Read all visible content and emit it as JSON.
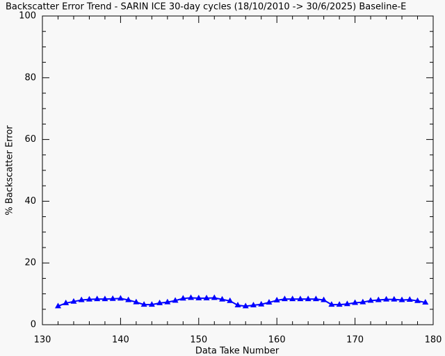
{
  "chart_data": {
    "type": "line",
    "title": "Backscatter Error Trend - SARIN ICE 30-day cycles (18/10/2010 -> 30/6/2025) Baseline-E",
    "x_label": "Data Take Number",
    "y_label": "% Backscatter Error",
    "x": [
      132,
      133,
      134,
      135,
      136,
      137,
      138,
      139,
      140,
      141,
      142,
      143,
      144,
      145,
      146,
      147,
      148,
      149,
      150,
      151,
      152,
      153,
      154,
      155,
      156,
      157,
      158,
      159,
      160,
      161,
      162,
      163,
      164,
      165,
      166,
      167,
      168,
      169,
      170,
      171,
      172,
      173,
      174,
      175,
      176,
      177,
      178,
      179
    ],
    "series": [
      {
        "name": "% Backscatter Error",
        "color": "#0000ff",
        "values": [
          6.0,
          7.0,
          7.5,
          8.0,
          8.2,
          8.3,
          8.3,
          8.4,
          8.5,
          8.0,
          7.3,
          6.5,
          6.5,
          7.0,
          7.3,
          7.8,
          8.5,
          8.7,
          8.6,
          8.6,
          8.7,
          8.2,
          7.7,
          6.3,
          6.0,
          6.3,
          6.6,
          7.2,
          7.9,
          8.3,
          8.3,
          8.3,
          8.3,
          8.3,
          8.0,
          6.5,
          6.5,
          6.7,
          7.1,
          7.3,
          7.8,
          8.0,
          8.2,
          8.2,
          8.0,
          8.1,
          7.7,
          7.2
        ]
      }
    ],
    "xlim": [
      130,
      180
    ],
    "xticks": [
      130,
      140,
      150,
      160,
      170,
      180
    ],
    "ylim": [
      0,
      100
    ],
    "yticks": [
      0,
      20,
      40,
      60,
      80,
      100
    ]
  }
}
